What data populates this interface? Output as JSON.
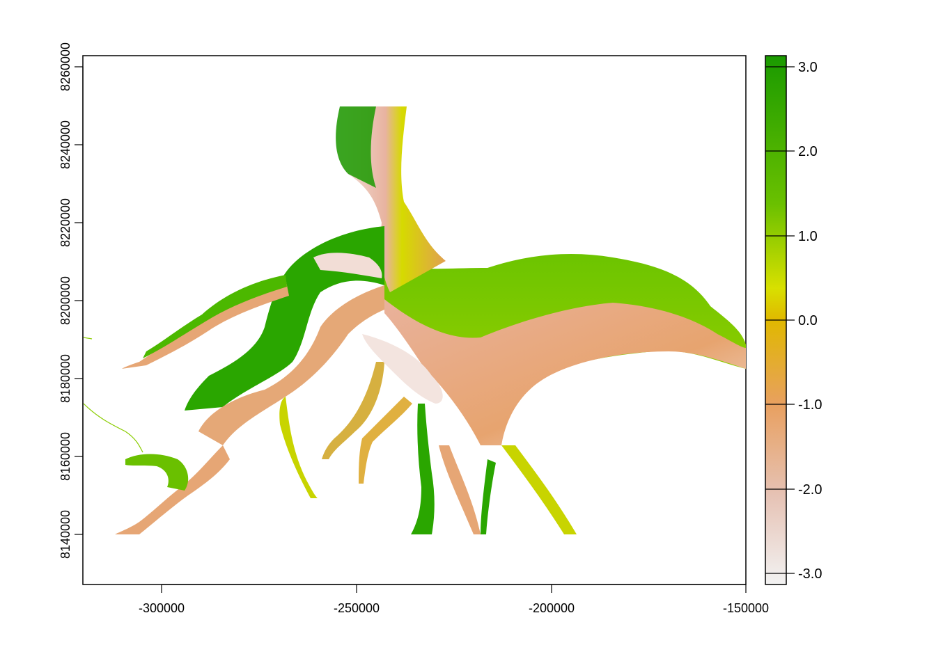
{
  "map": {
    "type": "raster",
    "xlim": [
      -320000,
      -150000
    ],
    "ylim": [
      8128000,
      8263000
    ],
    "x_ticks": [
      -300000,
      -250000,
      -200000,
      -150000
    ],
    "x_tick_labels": [
      "-300000",
      "-250000",
      "-200000",
      "-150000"
    ],
    "y_ticks": [
      8140000,
      8160000,
      8180000,
      8200000,
      8220000,
      8240000,
      8260000
    ],
    "y_tick_labels": [
      "8140000",
      "8160000",
      "8180000",
      "8200000",
      "8220000",
      "8240000",
      "8260000"
    ],
    "legend": {
      "range": [
        -3.14,
        3.14
      ],
      "ticks": [
        3.0,
        2.0,
        1.0,
        0.0,
        -1.0,
        -2.0,
        -3.0
      ],
      "tick_labels": [
        "3.0",
        "2.0",
        "1.0",
        "0.0",
        "-1.0",
        "-2.0",
        "-3.0"
      ],
      "colors": [
        "#f2f2f2",
        "#e6c2b4",
        "#e8a060",
        "#e0b800",
        "#d8e000",
        "#6ac000",
        "#1a9a00"
      ]
    },
    "colors": {
      "green_dark": "#1a9a00",
      "green": "#5cc000",
      "yellow": "#d6da00",
      "orange": "#e3a35a",
      "pink": "#e8b09a",
      "pale": "#f2e6e2"
    }
  }
}
